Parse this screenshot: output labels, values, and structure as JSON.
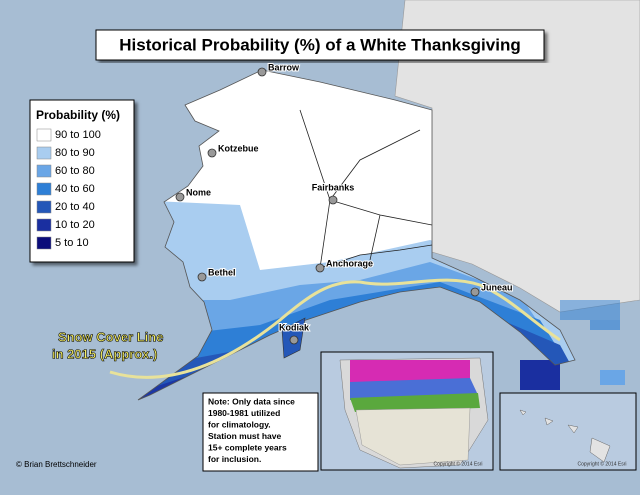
{
  "title": "Historical Probability (%) of a White Thanksgiving",
  "legend": {
    "title": "Probability (%)",
    "items": [
      {
        "label": "90 to 100",
        "color": "#ffffff"
      },
      {
        "label": "80 to 90",
        "color": "#a9cdf0"
      },
      {
        "label": "60 to 80",
        "color": "#6aa6e6"
      },
      {
        "label": "40 to 60",
        "color": "#2e7fd6"
      },
      {
        "label": "20 to 40",
        "color": "#2457b8"
      },
      {
        "label": "10 to 20",
        "color": "#1a2fa0"
      },
      {
        "label": "5 to 10",
        "color": "#0b0c7a"
      }
    ]
  },
  "cities": [
    "Barrow",
    "Kotzebue",
    "Nome",
    "Fairbanks",
    "Bethel",
    "Anchorage",
    "Juneau",
    "Kodiak"
  ],
  "annotation": [
    "Snow Cover Line",
    "in 2015 (Approx.)"
  ],
  "note": [
    "Note: Only data since",
    "1980-1981 utilized",
    "for climatology.",
    "Station must have",
    "15+ complete years",
    "for inclusion."
  ],
  "credit": "© Brian Brettschneider",
  "inset_credits": [
    "Copyright © 2014 Esri",
    "Copyright © 2014 Esri"
  ]
}
